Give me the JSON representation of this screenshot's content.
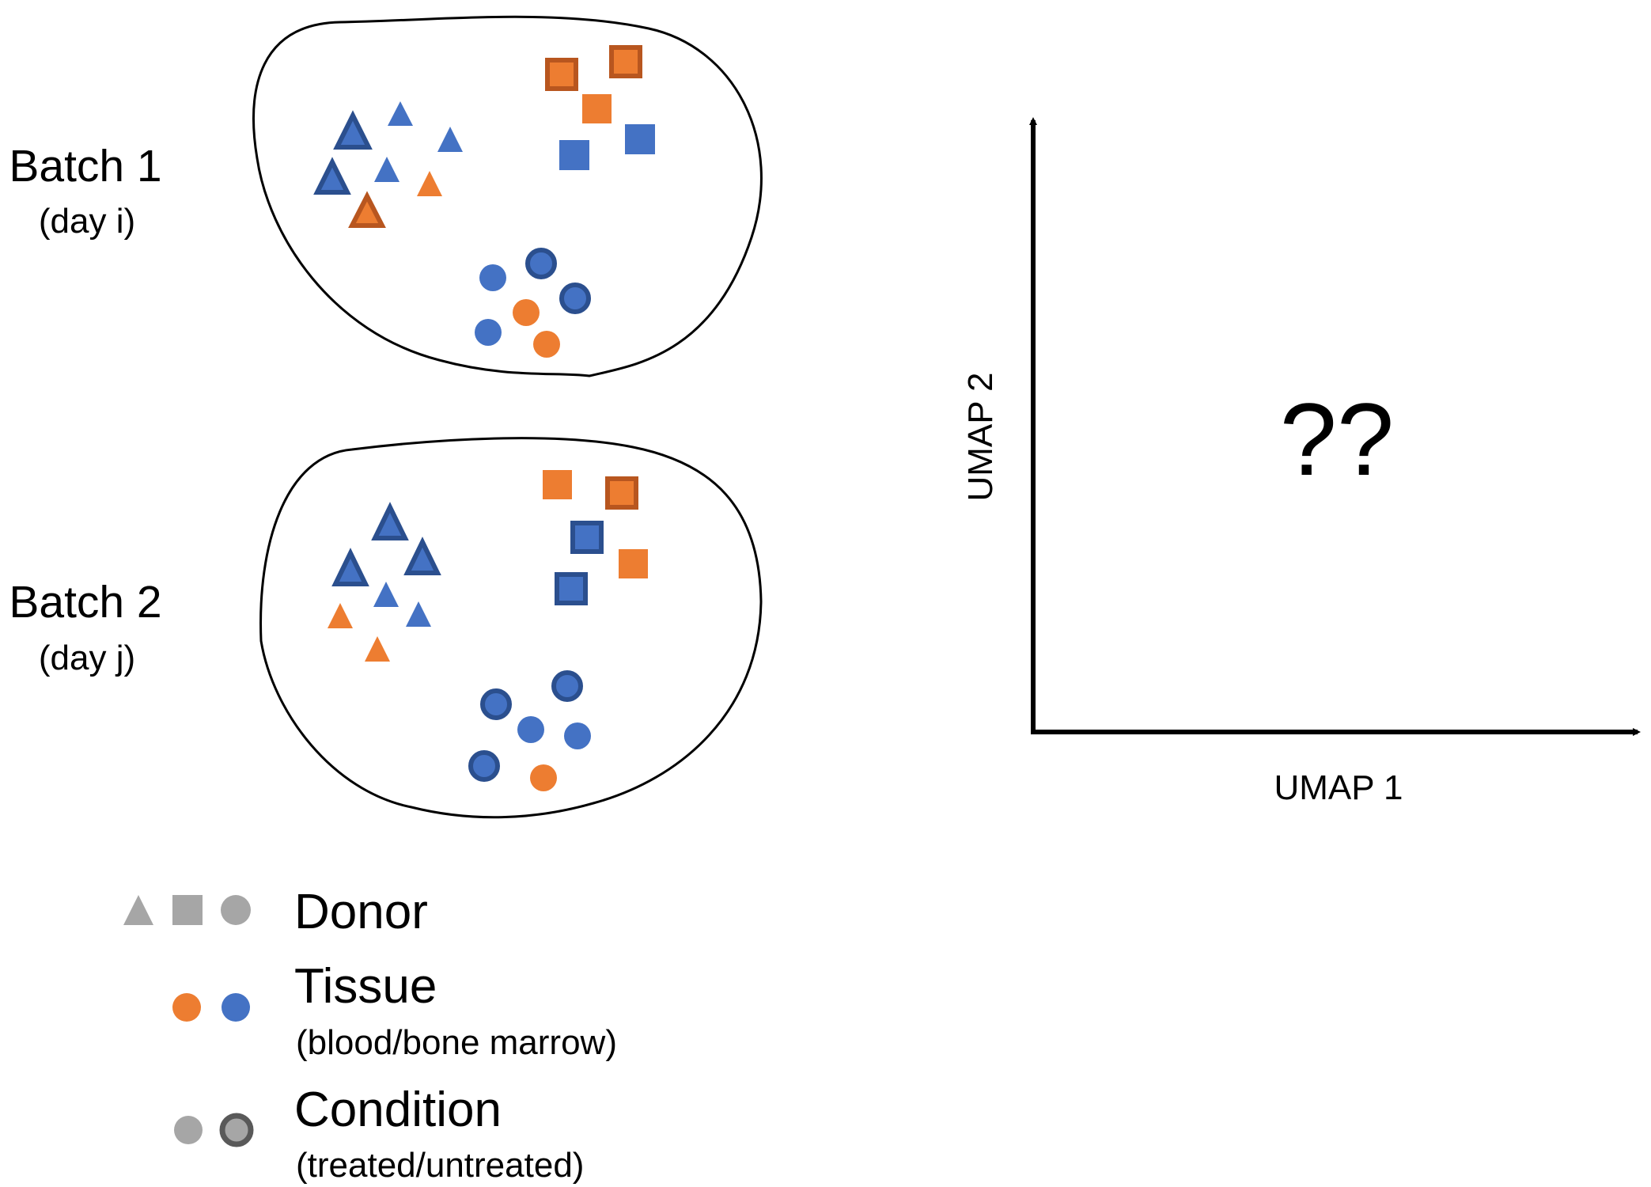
{
  "batches": [
    {
      "title": "Batch 1",
      "subtitle": "(day i)"
    },
    {
      "title": "Batch 2",
      "subtitle": "(day j)"
    }
  ],
  "plot": {
    "x_label": "UMAP 1",
    "y_label": "UMAP 2",
    "placeholder": "??"
  },
  "legend": {
    "donor": {
      "title": "Donor"
    },
    "tissue": {
      "title": "Tissue",
      "subtitle": "(blood/bone marrow)"
    },
    "condition": {
      "title": "Condition",
      "subtitle": "(treated/untreated)"
    }
  },
  "colors": {
    "orange": "#ED7D31",
    "orange_outline": "#B8561F",
    "blue": "#4472C4",
    "blue_outline": "#2B4F8E",
    "gray": "#A6A6A6",
    "gray_outline": "#595959"
  },
  "icons": [
    "triangle-marker",
    "square-marker",
    "circle-marker"
  ]
}
